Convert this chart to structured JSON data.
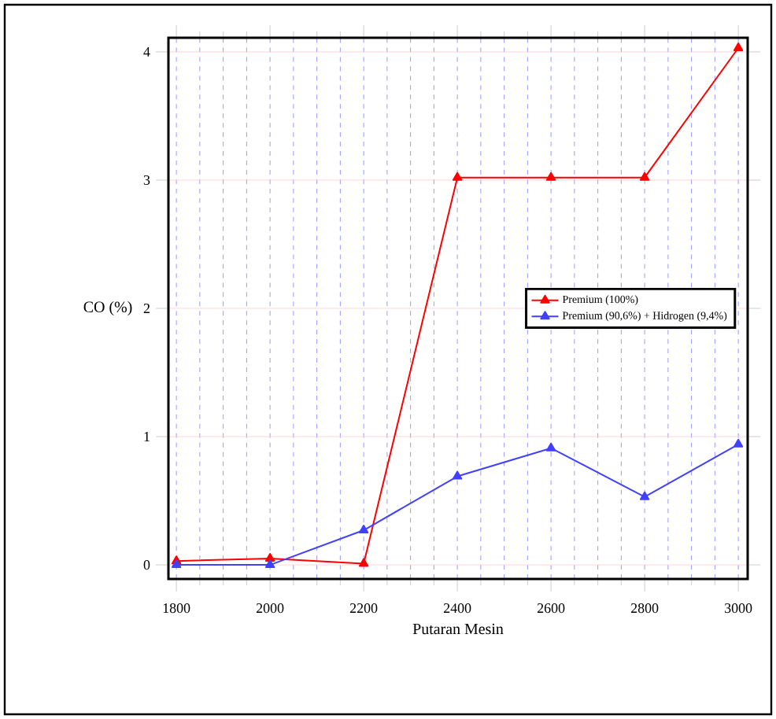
{
  "chart_data": {
    "type": "line",
    "xlabel": "Putaran Mesin",
    "ylabel": "CO (%)",
    "x": [
      1800,
      2000,
      2200,
      2400,
      2600,
      2800,
      3000
    ],
    "series": [
      {
        "name": "Premium (100%)",
        "color": "#ff0000",
        "values": [
          0.03,
          0.05,
          0.01,
          3.02,
          3.02,
          3.02,
          4.03
        ]
      },
      {
        "name": "Premium (90,6%) + Hidrogen (9,4%)",
        "color": "#4040ff",
        "values": [
          0,
          0,
          0.27,
          0.69,
          0.91,
          0.53,
          0.94
        ]
      }
    ],
    "xlim": [
      1783,
      3020
    ],
    "ylim": [
      -0.11,
      4.11
    ],
    "xticks": [
      1800,
      2000,
      2200,
      2400,
      2600,
      2800,
      3000
    ],
    "yticks": [
      0,
      1,
      2,
      3,
      4
    ],
    "grid": true,
    "legend": "right",
    "marker": "triangle",
    "line_style": "solid"
  }
}
